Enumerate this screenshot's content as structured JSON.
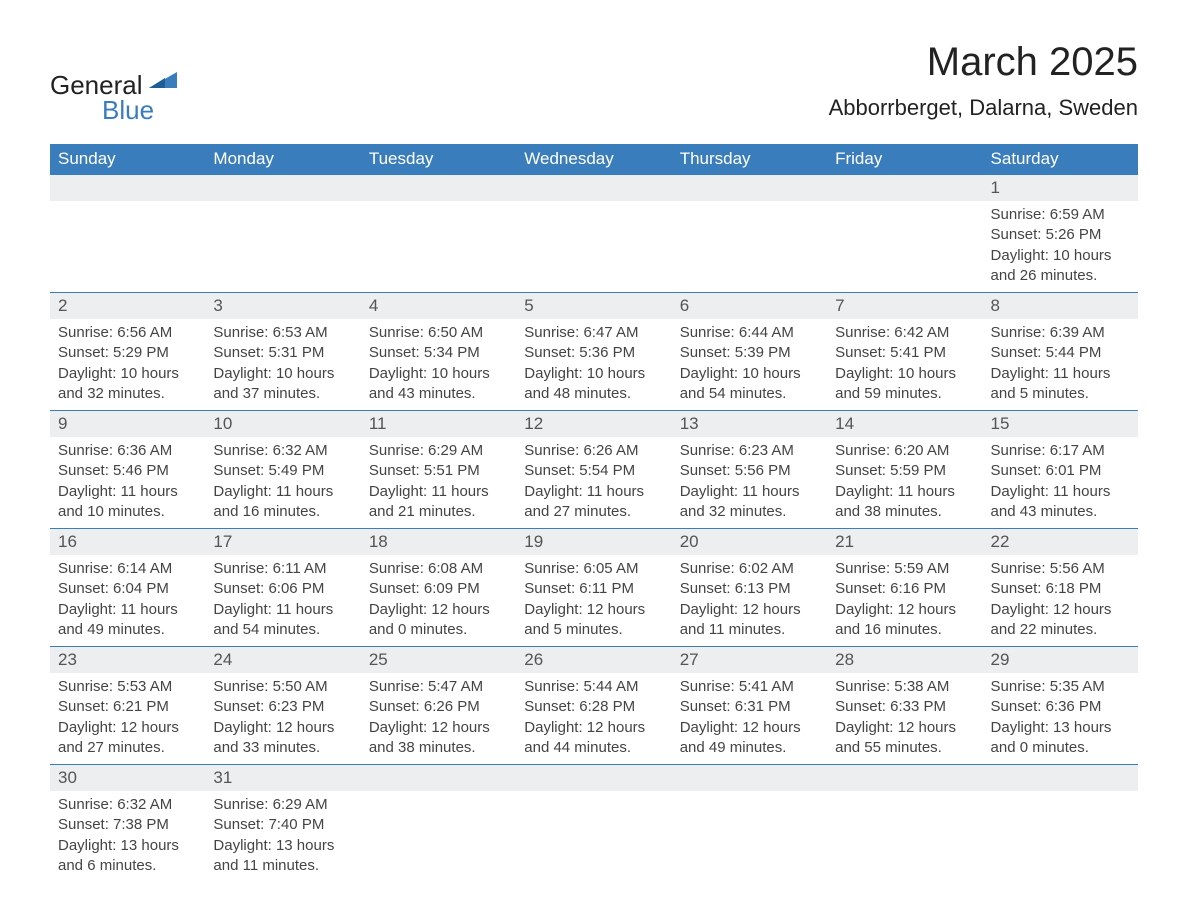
{
  "logo": {
    "line1": "General",
    "line2": "Blue"
  },
  "title": "March 2025",
  "location": "Abborrberget, Dalarna, Sweden",
  "colors": {
    "accent": "#3a7dbd",
    "header_bg": "#3a7dbd",
    "shade_bg": "#eceeef",
    "text": "#333333"
  },
  "font": {
    "family": "Arial",
    "title_size": 40,
    "location_size": 22,
    "header_size": 17,
    "daynum_size": 17,
    "cell_size": 15
  },
  "day_headers": [
    "Sunday",
    "Monday",
    "Tuesday",
    "Wednesday",
    "Thursday",
    "Friday",
    "Saturday"
  ],
  "weeks": [
    [
      null,
      null,
      null,
      null,
      null,
      null,
      {
        "n": "1",
        "sunrise": "Sunrise: 6:59 AM",
        "sunset": "Sunset: 5:26 PM",
        "day1": "Daylight: 10 hours",
        "day2": "and 26 minutes."
      }
    ],
    [
      {
        "n": "2",
        "sunrise": "Sunrise: 6:56 AM",
        "sunset": "Sunset: 5:29 PM",
        "day1": "Daylight: 10 hours",
        "day2": "and 32 minutes."
      },
      {
        "n": "3",
        "sunrise": "Sunrise: 6:53 AM",
        "sunset": "Sunset: 5:31 PM",
        "day1": "Daylight: 10 hours",
        "day2": "and 37 minutes."
      },
      {
        "n": "4",
        "sunrise": "Sunrise: 6:50 AM",
        "sunset": "Sunset: 5:34 PM",
        "day1": "Daylight: 10 hours",
        "day2": "and 43 minutes."
      },
      {
        "n": "5",
        "sunrise": "Sunrise: 6:47 AM",
        "sunset": "Sunset: 5:36 PM",
        "day1": "Daylight: 10 hours",
        "day2": "and 48 minutes."
      },
      {
        "n": "6",
        "sunrise": "Sunrise: 6:44 AM",
        "sunset": "Sunset: 5:39 PM",
        "day1": "Daylight: 10 hours",
        "day2": "and 54 minutes."
      },
      {
        "n": "7",
        "sunrise": "Sunrise: 6:42 AM",
        "sunset": "Sunset: 5:41 PM",
        "day1": "Daylight: 10 hours",
        "day2": "and 59 minutes."
      },
      {
        "n": "8",
        "sunrise": "Sunrise: 6:39 AM",
        "sunset": "Sunset: 5:44 PM",
        "day1": "Daylight: 11 hours",
        "day2": "and 5 minutes."
      }
    ],
    [
      {
        "n": "9",
        "sunrise": "Sunrise: 6:36 AM",
        "sunset": "Sunset: 5:46 PM",
        "day1": "Daylight: 11 hours",
        "day2": "and 10 minutes."
      },
      {
        "n": "10",
        "sunrise": "Sunrise: 6:32 AM",
        "sunset": "Sunset: 5:49 PM",
        "day1": "Daylight: 11 hours",
        "day2": "and 16 minutes."
      },
      {
        "n": "11",
        "sunrise": "Sunrise: 6:29 AM",
        "sunset": "Sunset: 5:51 PM",
        "day1": "Daylight: 11 hours",
        "day2": "and 21 minutes."
      },
      {
        "n": "12",
        "sunrise": "Sunrise: 6:26 AM",
        "sunset": "Sunset: 5:54 PM",
        "day1": "Daylight: 11 hours",
        "day2": "and 27 minutes."
      },
      {
        "n": "13",
        "sunrise": "Sunrise: 6:23 AM",
        "sunset": "Sunset: 5:56 PM",
        "day1": "Daylight: 11 hours",
        "day2": "and 32 minutes."
      },
      {
        "n": "14",
        "sunrise": "Sunrise: 6:20 AM",
        "sunset": "Sunset: 5:59 PM",
        "day1": "Daylight: 11 hours",
        "day2": "and 38 minutes."
      },
      {
        "n": "15",
        "sunrise": "Sunrise: 6:17 AM",
        "sunset": "Sunset: 6:01 PM",
        "day1": "Daylight: 11 hours",
        "day2": "and 43 minutes."
      }
    ],
    [
      {
        "n": "16",
        "sunrise": "Sunrise: 6:14 AM",
        "sunset": "Sunset: 6:04 PM",
        "day1": "Daylight: 11 hours",
        "day2": "and 49 minutes."
      },
      {
        "n": "17",
        "sunrise": "Sunrise: 6:11 AM",
        "sunset": "Sunset: 6:06 PM",
        "day1": "Daylight: 11 hours",
        "day2": "and 54 minutes."
      },
      {
        "n": "18",
        "sunrise": "Sunrise: 6:08 AM",
        "sunset": "Sunset: 6:09 PM",
        "day1": "Daylight: 12 hours",
        "day2": "and 0 minutes."
      },
      {
        "n": "19",
        "sunrise": "Sunrise: 6:05 AM",
        "sunset": "Sunset: 6:11 PM",
        "day1": "Daylight: 12 hours",
        "day2": "and 5 minutes."
      },
      {
        "n": "20",
        "sunrise": "Sunrise: 6:02 AM",
        "sunset": "Sunset: 6:13 PM",
        "day1": "Daylight: 12 hours",
        "day2": "and 11 minutes."
      },
      {
        "n": "21",
        "sunrise": "Sunrise: 5:59 AM",
        "sunset": "Sunset: 6:16 PM",
        "day1": "Daylight: 12 hours",
        "day2": "and 16 minutes."
      },
      {
        "n": "22",
        "sunrise": "Sunrise: 5:56 AM",
        "sunset": "Sunset: 6:18 PM",
        "day1": "Daylight: 12 hours",
        "day2": "and 22 minutes."
      }
    ],
    [
      {
        "n": "23",
        "sunrise": "Sunrise: 5:53 AM",
        "sunset": "Sunset: 6:21 PM",
        "day1": "Daylight: 12 hours",
        "day2": "and 27 minutes."
      },
      {
        "n": "24",
        "sunrise": "Sunrise: 5:50 AM",
        "sunset": "Sunset: 6:23 PM",
        "day1": "Daylight: 12 hours",
        "day2": "and 33 minutes."
      },
      {
        "n": "25",
        "sunrise": "Sunrise: 5:47 AM",
        "sunset": "Sunset: 6:26 PM",
        "day1": "Daylight: 12 hours",
        "day2": "and 38 minutes."
      },
      {
        "n": "26",
        "sunrise": "Sunrise: 5:44 AM",
        "sunset": "Sunset: 6:28 PM",
        "day1": "Daylight: 12 hours",
        "day2": "and 44 minutes."
      },
      {
        "n": "27",
        "sunrise": "Sunrise: 5:41 AM",
        "sunset": "Sunset: 6:31 PM",
        "day1": "Daylight: 12 hours",
        "day2": "and 49 minutes."
      },
      {
        "n": "28",
        "sunrise": "Sunrise: 5:38 AM",
        "sunset": "Sunset: 6:33 PM",
        "day1": "Daylight: 12 hours",
        "day2": "and 55 minutes."
      },
      {
        "n": "29",
        "sunrise": "Sunrise: 5:35 AM",
        "sunset": "Sunset: 6:36 PM",
        "day1": "Daylight: 13 hours",
        "day2": "and 0 minutes."
      }
    ],
    [
      {
        "n": "30",
        "sunrise": "Sunrise: 6:32 AM",
        "sunset": "Sunset: 7:38 PM",
        "day1": "Daylight: 13 hours",
        "day2": "and 6 minutes."
      },
      {
        "n": "31",
        "sunrise": "Sunrise: 6:29 AM",
        "sunset": "Sunset: 7:40 PM",
        "day1": "Daylight: 13 hours",
        "day2": "and 11 minutes."
      },
      null,
      null,
      null,
      null,
      null
    ]
  ]
}
